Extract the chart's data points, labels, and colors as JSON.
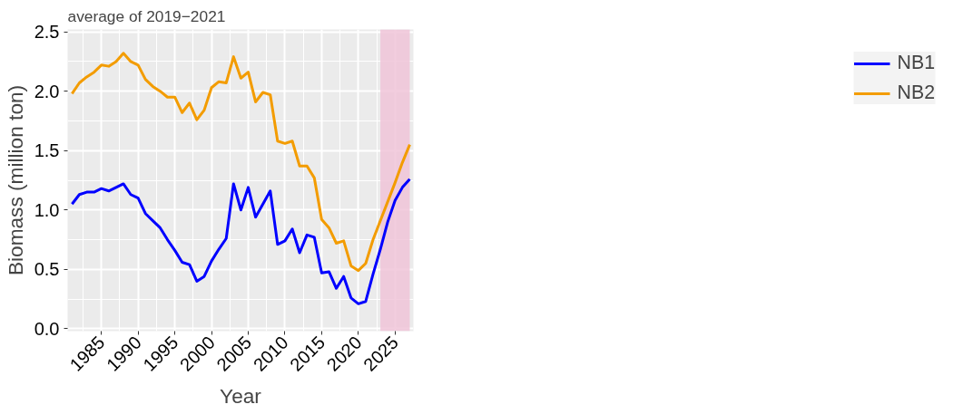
{
  "chart_data": {
    "type": "line",
    "title": "average of 2019−2021",
    "xlabel": "Year",
    "ylabel": "Biomass (million ton)",
    "x": [
      1981,
      1982,
      1983,
      1984,
      1985,
      1986,
      1987,
      1988,
      1989,
      1990,
      1991,
      1992,
      1993,
      1994,
      1995,
      1996,
      1997,
      1998,
      1999,
      2000,
      2001,
      2002,
      2003,
      2004,
      2005,
      2006,
      2007,
      2008,
      2009,
      2010,
      2011,
      2012,
      2013,
      2014,
      2015,
      2016,
      2017,
      2018,
      2019,
      2020,
      2021,
      2022,
      2023,
      2024,
      2025,
      2026,
      2027
    ],
    "series": [
      {
        "name": "NB1",
        "color": "#0000ff",
        "values": [
          1.05,
          1.13,
          1.15,
          1.15,
          1.18,
          1.16,
          1.19,
          1.22,
          1.13,
          1.1,
          0.97,
          0.91,
          0.85,
          0.75,
          0.66,
          0.56,
          0.54,
          0.4,
          0.44,
          0.57,
          0.67,
          0.76,
          1.22,
          1.0,
          1.19,
          0.94,
          1.05,
          1.16,
          0.71,
          0.74,
          0.84,
          0.64,
          0.79,
          0.77,
          0.47,
          0.48,
          0.34,
          0.44,
          0.26,
          0.21,
          0.23,
          0.46,
          0.67,
          0.9,
          1.08,
          1.19,
          1.26
        ]
      },
      {
        "name": "NB2",
        "color": "#f39c00",
        "values": [
          1.98,
          2.07,
          2.12,
          2.16,
          2.22,
          2.21,
          2.25,
          2.32,
          2.25,
          2.22,
          2.1,
          2.04,
          2.0,
          1.95,
          1.95,
          1.82,
          1.9,
          1.76,
          1.84,
          2.03,
          2.08,
          2.07,
          2.29,
          2.11,
          2.16,
          1.91,
          1.99,
          1.97,
          1.58,
          1.56,
          1.58,
          1.37,
          1.37,
          1.27,
          0.92,
          0.85,
          0.72,
          0.74,
          0.53,
          0.49,
          0.55,
          0.75,
          0.91,
          1.07,
          1.23,
          1.4,
          1.55
        ]
      }
    ],
    "xlim": [
      1980.4,
      2027.5
    ],
    "ylim": [
      -0.02,
      2.52
    ],
    "xticks": [
      1985,
      1990,
      1995,
      2000,
      2005,
      2010,
      2015,
      2020,
      2025
    ],
    "yticks": [
      {
        "value": 0,
        "label": "0.0"
      },
      {
        "value": 0.5,
        "label": "0.5"
      },
      {
        "value": 1,
        "label": "1.0"
      },
      {
        "value": 1.5,
        "label": "1.5"
      },
      {
        "value": 2,
        "label": "2.0"
      },
      {
        "value": 2.5,
        "label": "2.5"
      }
    ],
    "bands": [
      {
        "axis": "x",
        "from": 2023,
        "to": 2027,
        "color": "#f0c4d8"
      }
    ],
    "grid": true,
    "legend": "right",
    "line_style": "solid",
    "marker": "none"
  }
}
